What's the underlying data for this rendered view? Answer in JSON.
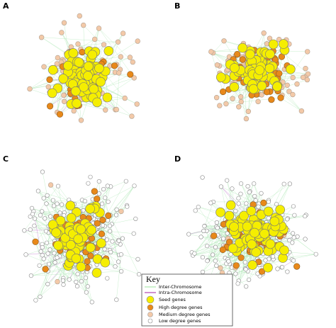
{
  "panels": [
    {
      "label": "A"
    },
    {
      "label": "B"
    },
    {
      "label": "C"
    },
    {
      "label": "D"
    }
  ],
  "key": {
    "title": "Key",
    "items": [
      "Inter-Chromosome",
      "Intra-Chromosome",
      "Seed genes",
      "High degree genes",
      "Medium degree genes",
      "Low degree genes"
    ]
  }
}
